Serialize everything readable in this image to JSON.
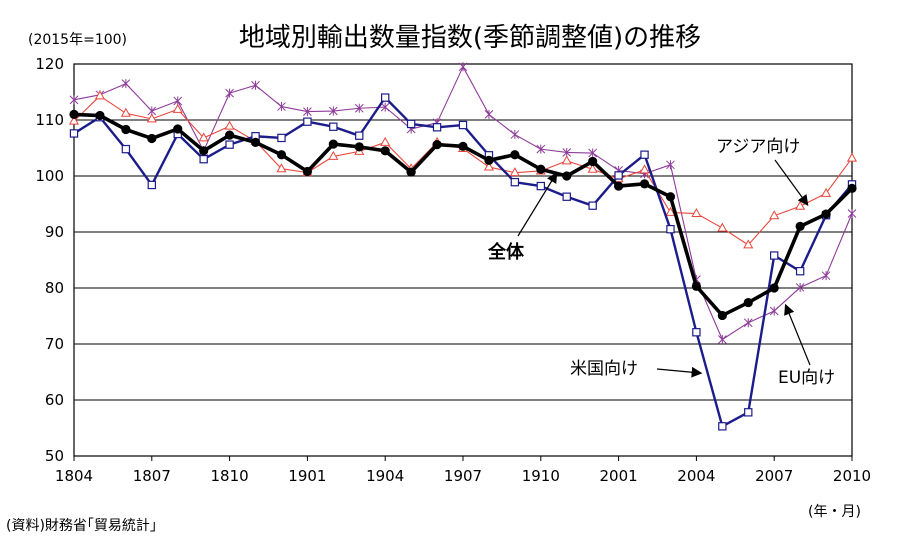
{
  "chart_data": {
    "type": "line",
    "title": "地域別輸出数量指数(季節調整値)の推移",
    "unit_note": "(2015年=100)",
    "source": "(資料)財務省｢貿易統計｣",
    "xlabel": "(年・月)",
    "x": [
      "1804",
      "1805",
      "1806",
      "1807",
      "1808",
      "1809",
      "1810",
      "1811",
      "1812",
      "1901",
      "1902",
      "1903",
      "1904",
      "1905",
      "1906",
      "1907",
      "1908",
      "1909",
      "1910",
      "1911",
      "1912",
      "2001",
      "2002",
      "2003",
      "2004",
      "2005",
      "2006",
      "2007",
      "2008",
      "2009",
      "2010"
    ],
    "x_tick_labels": [
      "1804",
      "1807",
      "1810",
      "1901",
      "1904",
      "1907",
      "1910",
      "2001",
      "2004",
      "2007",
      "2010"
    ],
    "y_tick_labels": [
      "50",
      "60",
      "70",
      "80",
      "90",
      "100",
      "110",
      "120"
    ],
    "ylim": [
      50,
      120
    ],
    "grid": true,
    "series": [
      {
        "name": "全体",
        "color": "#000000",
        "marker": "dot",
        "values": [
          111.0,
          110.8,
          108.3,
          106.7,
          108.4,
          104.5,
          107.3,
          106.0,
          103.8,
          100.8,
          105.7,
          105.2,
          104.5,
          100.7,
          105.6,
          105.3,
          102.8,
          103.8,
          101.2,
          100.0,
          102.6,
          98.2,
          98.6,
          96.3,
          80.3,
          75.1,
          77.4,
          80.0,
          91.0,
          93.2,
          97.8
        ]
      },
      {
        "name": "アジア向け",
        "color": "#e8463c",
        "marker": "triangle",
        "values": [
          109.8,
          114.3,
          111.2,
          110.2,
          111.9,
          106.8,
          108.9,
          106.2,
          101.3,
          100.6,
          103.5,
          104.4,
          106.0,
          101.3,
          106.0,
          104.9,
          101.6,
          100.6,
          100.9,
          102.7,
          101.2,
          99.5,
          101.1,
          93.5,
          93.3,
          90.7,
          87.7,
          92.9,
          94.6,
          96.9,
          103.2
        ]
      },
      {
        "name": "米国向け",
        "color": "#1c1c8a",
        "marker": "square",
        "values": [
          107.6,
          110.5,
          104.8,
          98.4,
          107.5,
          103.0,
          105.6,
          107.1,
          106.8,
          109.7,
          108.8,
          107.2,
          114.0,
          109.3,
          108.7,
          109.1,
          103.7,
          98.9,
          98.2,
          96.3,
          94.7,
          100.1,
          103.8,
          90.5,
          72.1,
          55.3,
          57.8,
          85.8,
          83.0,
          93.0,
          98.5
        ]
      },
      {
        "name": "EU向け",
        "color": "#8e3c99",
        "marker": "x",
        "values": [
          113.6,
          114.5,
          116.5,
          111.6,
          113.4,
          104.5,
          114.8,
          116.2,
          112.4,
          111.5,
          111.6,
          112.1,
          112.3,
          108.4,
          109.5,
          119.5,
          111.0,
          107.4,
          104.8,
          104.2,
          104.1,
          101.0,
          100.4,
          102.0,
          81.5,
          70.8,
          73.8,
          75.9,
          80.1,
          82.2,
          93.3
        ]
      }
    ]
  }
}
